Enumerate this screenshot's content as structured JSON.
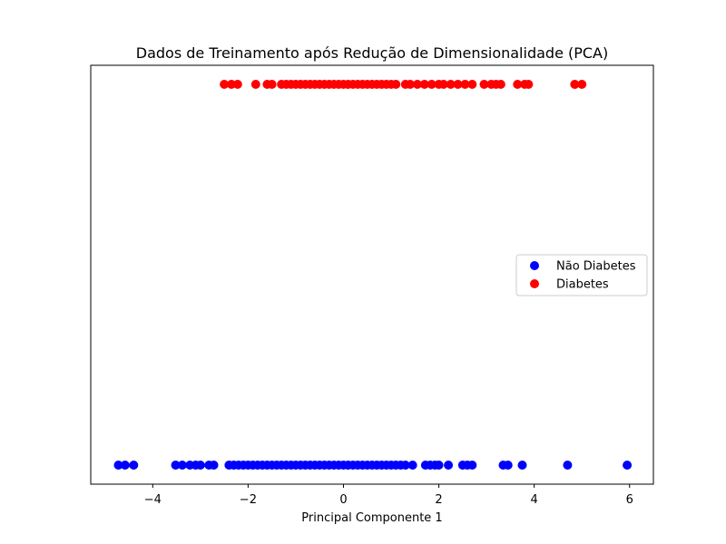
{
  "chart_data": {
    "type": "scatter",
    "title": "Dados de Treinamento após Redução de Dimensionalidade (PCA)",
    "xlabel": "Principal Componente 1",
    "ylabel": "",
    "xlim": [
      -5.3,
      6.5
    ],
    "ylim": [
      -0.05,
      1.05
    ],
    "xticks": [
      -4,
      -2,
      0,
      2,
      4,
      6
    ],
    "xtick_labels": [
      "−4",
      "−2",
      "0",
      "2",
      "4",
      "6"
    ],
    "yticks_visible": false,
    "grid": false,
    "legend_position": "center-right",
    "series": [
      {
        "name": "Não Diabetes",
        "color": "#0000ff",
        "y": 0,
        "x": [
          -4.72,
          -4.58,
          -4.4,
          -3.52,
          -3.38,
          -3.22,
          -3.1,
          -3.0,
          -2.82,
          -2.72,
          -2.4,
          -2.3,
          -2.2,
          -2.1,
          -2.0,
          -1.9,
          -1.8,
          -1.7,
          -1.6,
          -1.5,
          -1.4,
          -1.3,
          -1.2,
          -1.1,
          -1.0,
          -0.9,
          -0.8,
          -0.7,
          -0.6,
          -0.5,
          -0.4,
          -0.3,
          -0.2,
          -0.1,
          0.0,
          0.1,
          0.2,
          0.3,
          0.4,
          0.5,
          0.6,
          0.7,
          0.8,
          0.9,
          1.0,
          1.1,
          1.2,
          1.3,
          1.45,
          1.72,
          1.82,
          1.92,
          2.0,
          2.2,
          2.5,
          2.6,
          2.7,
          3.35,
          3.45,
          3.75,
          4.7,
          5.95
        ]
      },
      {
        "name": "Diabetes",
        "color": "#ff0000",
        "y": 1,
        "x": [
          -2.5,
          -2.35,
          -2.22,
          -1.84,
          -1.6,
          -1.5,
          -1.3,
          -1.2,
          -1.1,
          -1.0,
          -0.9,
          -0.8,
          -0.7,
          -0.6,
          -0.5,
          -0.4,
          -0.3,
          -0.2,
          -0.1,
          0.0,
          0.1,
          0.2,
          0.3,
          0.4,
          0.5,
          0.6,
          0.7,
          0.8,
          0.9,
          1.0,
          1.1,
          1.3,
          1.4,
          1.55,
          1.7,
          1.85,
          2.0,
          2.1,
          2.25,
          2.4,
          2.55,
          2.7,
          2.95,
          3.1,
          3.2,
          3.3,
          3.65,
          3.8,
          3.88,
          4.85,
          5.0
        ]
      }
    ]
  }
}
